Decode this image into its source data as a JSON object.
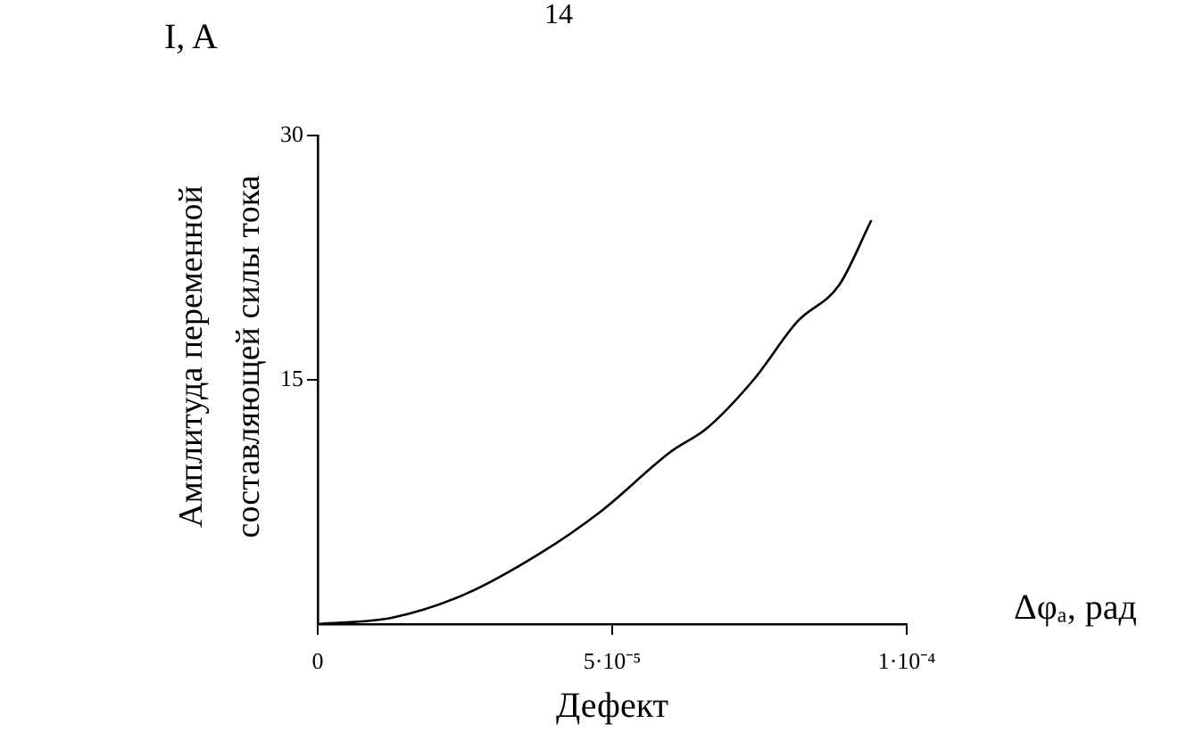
{
  "chart_data": {
    "type": "line",
    "ylabel": "Амплитуда переменной составляющей силы тока",
    "xlabel": "Дефект",
    "annotations": [
      "14",
      "I, A",
      "Δφₐ, рад"
    ],
    "x": [
      0,
      1.27e-05,
      2.48e-05,
      3.8e-05,
      4.8e-05,
      6e-05,
      6.6e-05,
      7.4e-05,
      8.15e-05,
      8.85e-05,
      9.4e-05
    ],
    "series": [
      {
        "color": "#000000",
        "values": [
          0,
          0.4,
          1.8,
          4.4,
          6.9,
          10.6,
          12,
          15,
          18.6,
          20.8,
          24.8
        ]
      }
    ],
    "xlim": [
      0,
      0.0001
    ],
    "ylim": [
      0,
      30
    ],
    "xticks": [
      0,
      {
        "value": 5e-05,
        "label": "5·10⁻⁵"
      },
      {
        "value": 0.0001,
        "label": "1·10⁻⁴"
      }
    ],
    "yticks": [
      15,
      30
    ],
    "grid": false,
    "legend": false,
    "marker": "none",
    "line_style": "solid"
  }
}
